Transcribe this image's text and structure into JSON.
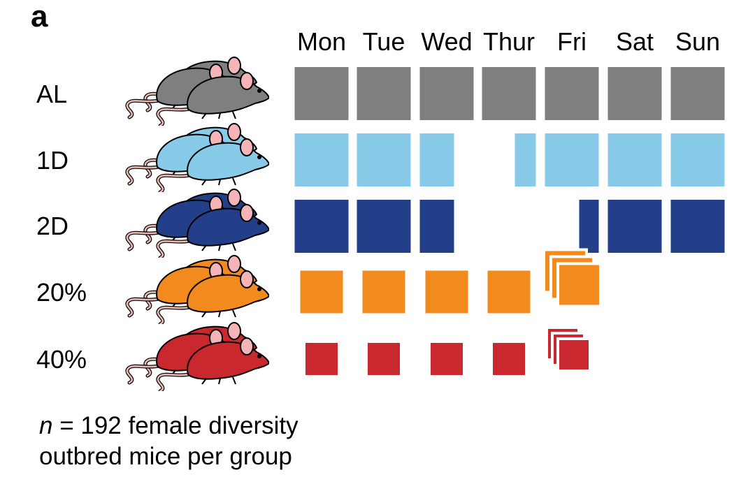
{
  "panel_label": "a",
  "days": [
    "Mon",
    "Tue",
    "Wed",
    "Thur",
    "Fri",
    "Sat",
    "Sun"
  ],
  "colors": {
    "AL": "#7f7f7f",
    "1D": "#87cbe8",
    "2D": "#233f89",
    "20%": "#f28a1e",
    "40%": "#c9282e",
    "mouse_outline": "#000000",
    "ear": "#f4b4b8",
    "tail": "#e9b8b3"
  },
  "groups": [
    {
      "label": "AL",
      "key": "AL",
      "schedule": [
        "full",
        "full",
        "full",
        "full",
        "full",
        "full",
        "full"
      ]
    },
    {
      "label": "1D",
      "key": "1D",
      "schedule": [
        "full",
        "full",
        "fed-until-midweek-fast",
        "fast-end",
        "full",
        "full",
        "full"
      ]
    },
    {
      "label": "2D",
      "key": "2D",
      "schedule": [
        "full",
        "full",
        "fed-until-midweek-fast",
        "fast",
        "fast-end",
        "full",
        "full"
      ]
    },
    {
      "label": "20%",
      "key": "20%",
      "schedule": [
        "reduced",
        "reduced",
        "reduced",
        "reduced",
        "stacked",
        "none",
        "none"
      ]
    },
    {
      "label": "40%",
      "key": "40%",
      "schedule": [
        "reduced",
        "reduced",
        "reduced",
        "reduced",
        "stacked",
        "none",
        "none"
      ]
    }
  ],
  "footnote": {
    "italic": "n",
    "rest_line1": " = 192 female diversity",
    "line2": "outbred mice per group"
  },
  "icons": {
    "mouse": "mouse-trio-icon"
  }
}
